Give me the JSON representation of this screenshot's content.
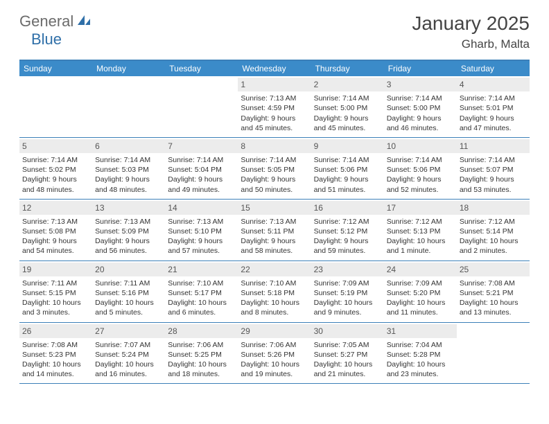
{
  "logo": {
    "part1": "General",
    "part2": "Blue"
  },
  "title": "January 2025",
  "location": "Gharb, Malta",
  "colors": {
    "header_bar": "#3b8bc9",
    "border": "#3b7fb8",
    "daynum_bg": "#ececec",
    "logo_gray": "#6b6b6b",
    "logo_blue": "#2f6fa8"
  },
  "weekdays": [
    "Sunday",
    "Monday",
    "Tuesday",
    "Wednesday",
    "Thursday",
    "Friday",
    "Saturday"
  ],
  "weeks": [
    [
      null,
      null,
      null,
      {
        "n": "1",
        "sr": "Sunrise: 7:13 AM",
        "ss": "Sunset: 4:59 PM",
        "dl1": "Daylight: 9 hours",
        "dl2": "and 45 minutes."
      },
      {
        "n": "2",
        "sr": "Sunrise: 7:14 AM",
        "ss": "Sunset: 5:00 PM",
        "dl1": "Daylight: 9 hours",
        "dl2": "and 45 minutes."
      },
      {
        "n": "3",
        "sr": "Sunrise: 7:14 AM",
        "ss": "Sunset: 5:00 PM",
        "dl1": "Daylight: 9 hours",
        "dl2": "and 46 minutes."
      },
      {
        "n": "4",
        "sr": "Sunrise: 7:14 AM",
        "ss": "Sunset: 5:01 PM",
        "dl1": "Daylight: 9 hours",
        "dl2": "and 47 minutes."
      }
    ],
    [
      {
        "n": "5",
        "sr": "Sunrise: 7:14 AM",
        "ss": "Sunset: 5:02 PM",
        "dl1": "Daylight: 9 hours",
        "dl2": "and 48 minutes."
      },
      {
        "n": "6",
        "sr": "Sunrise: 7:14 AM",
        "ss": "Sunset: 5:03 PM",
        "dl1": "Daylight: 9 hours",
        "dl2": "and 48 minutes."
      },
      {
        "n": "7",
        "sr": "Sunrise: 7:14 AM",
        "ss": "Sunset: 5:04 PM",
        "dl1": "Daylight: 9 hours",
        "dl2": "and 49 minutes."
      },
      {
        "n": "8",
        "sr": "Sunrise: 7:14 AM",
        "ss": "Sunset: 5:05 PM",
        "dl1": "Daylight: 9 hours",
        "dl2": "and 50 minutes."
      },
      {
        "n": "9",
        "sr": "Sunrise: 7:14 AM",
        "ss": "Sunset: 5:06 PM",
        "dl1": "Daylight: 9 hours",
        "dl2": "and 51 minutes."
      },
      {
        "n": "10",
        "sr": "Sunrise: 7:14 AM",
        "ss": "Sunset: 5:06 PM",
        "dl1": "Daylight: 9 hours",
        "dl2": "and 52 minutes."
      },
      {
        "n": "11",
        "sr": "Sunrise: 7:14 AM",
        "ss": "Sunset: 5:07 PM",
        "dl1": "Daylight: 9 hours",
        "dl2": "and 53 minutes."
      }
    ],
    [
      {
        "n": "12",
        "sr": "Sunrise: 7:13 AM",
        "ss": "Sunset: 5:08 PM",
        "dl1": "Daylight: 9 hours",
        "dl2": "and 54 minutes."
      },
      {
        "n": "13",
        "sr": "Sunrise: 7:13 AM",
        "ss": "Sunset: 5:09 PM",
        "dl1": "Daylight: 9 hours",
        "dl2": "and 56 minutes."
      },
      {
        "n": "14",
        "sr": "Sunrise: 7:13 AM",
        "ss": "Sunset: 5:10 PM",
        "dl1": "Daylight: 9 hours",
        "dl2": "and 57 minutes."
      },
      {
        "n": "15",
        "sr": "Sunrise: 7:13 AM",
        "ss": "Sunset: 5:11 PM",
        "dl1": "Daylight: 9 hours",
        "dl2": "and 58 minutes."
      },
      {
        "n": "16",
        "sr": "Sunrise: 7:12 AM",
        "ss": "Sunset: 5:12 PM",
        "dl1": "Daylight: 9 hours",
        "dl2": "and 59 minutes."
      },
      {
        "n": "17",
        "sr": "Sunrise: 7:12 AM",
        "ss": "Sunset: 5:13 PM",
        "dl1": "Daylight: 10 hours",
        "dl2": "and 1 minute."
      },
      {
        "n": "18",
        "sr": "Sunrise: 7:12 AM",
        "ss": "Sunset: 5:14 PM",
        "dl1": "Daylight: 10 hours",
        "dl2": "and 2 minutes."
      }
    ],
    [
      {
        "n": "19",
        "sr": "Sunrise: 7:11 AM",
        "ss": "Sunset: 5:15 PM",
        "dl1": "Daylight: 10 hours",
        "dl2": "and 3 minutes."
      },
      {
        "n": "20",
        "sr": "Sunrise: 7:11 AM",
        "ss": "Sunset: 5:16 PM",
        "dl1": "Daylight: 10 hours",
        "dl2": "and 5 minutes."
      },
      {
        "n": "21",
        "sr": "Sunrise: 7:10 AM",
        "ss": "Sunset: 5:17 PM",
        "dl1": "Daylight: 10 hours",
        "dl2": "and 6 minutes."
      },
      {
        "n": "22",
        "sr": "Sunrise: 7:10 AM",
        "ss": "Sunset: 5:18 PM",
        "dl1": "Daylight: 10 hours",
        "dl2": "and 8 minutes."
      },
      {
        "n": "23",
        "sr": "Sunrise: 7:09 AM",
        "ss": "Sunset: 5:19 PM",
        "dl1": "Daylight: 10 hours",
        "dl2": "and 9 minutes."
      },
      {
        "n": "24",
        "sr": "Sunrise: 7:09 AM",
        "ss": "Sunset: 5:20 PM",
        "dl1": "Daylight: 10 hours",
        "dl2": "and 11 minutes."
      },
      {
        "n": "25",
        "sr": "Sunrise: 7:08 AM",
        "ss": "Sunset: 5:21 PM",
        "dl1": "Daylight: 10 hours",
        "dl2": "and 13 minutes."
      }
    ],
    [
      {
        "n": "26",
        "sr": "Sunrise: 7:08 AM",
        "ss": "Sunset: 5:23 PM",
        "dl1": "Daylight: 10 hours",
        "dl2": "and 14 minutes."
      },
      {
        "n": "27",
        "sr": "Sunrise: 7:07 AM",
        "ss": "Sunset: 5:24 PM",
        "dl1": "Daylight: 10 hours",
        "dl2": "and 16 minutes."
      },
      {
        "n": "28",
        "sr": "Sunrise: 7:06 AM",
        "ss": "Sunset: 5:25 PM",
        "dl1": "Daylight: 10 hours",
        "dl2": "and 18 minutes."
      },
      {
        "n": "29",
        "sr": "Sunrise: 7:06 AM",
        "ss": "Sunset: 5:26 PM",
        "dl1": "Daylight: 10 hours",
        "dl2": "and 19 minutes."
      },
      {
        "n": "30",
        "sr": "Sunrise: 7:05 AM",
        "ss": "Sunset: 5:27 PM",
        "dl1": "Daylight: 10 hours",
        "dl2": "and 21 minutes."
      },
      {
        "n": "31",
        "sr": "Sunrise: 7:04 AM",
        "ss": "Sunset: 5:28 PM",
        "dl1": "Daylight: 10 hours",
        "dl2": "and 23 minutes."
      },
      null
    ]
  ]
}
